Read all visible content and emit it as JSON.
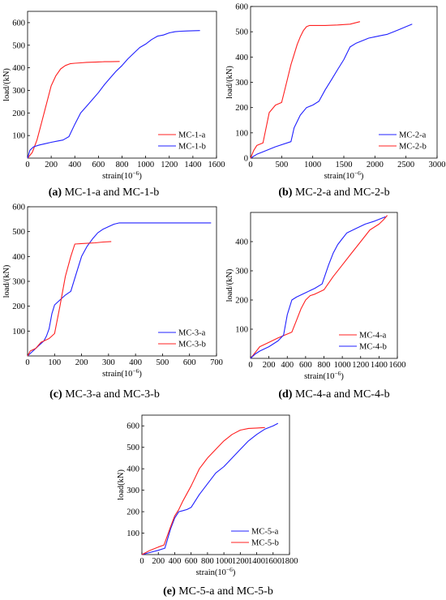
{
  "chart_data": [
    {
      "id": "a",
      "type": "line",
      "caption": {
        "letter": "(a)",
        "text": " MC-1-a and MC-1-b"
      },
      "xlabel": "strain(10",
      "xlabel_exp": "−6",
      "xlabel_close": ")",
      "ylabel": "load/(kN)",
      "xlim": [
        0,
        1600
      ],
      "ylim": [
        0,
        650
      ],
      "xticks": [
        0,
        200,
        400,
        600,
        800,
        1000,
        1200,
        1400,
        1600
      ],
      "yticks": [
        100,
        200,
        300,
        400,
        500,
        600
      ],
      "legend_position": "bottom-right",
      "series": [
        {
          "name": "MC-1-a",
          "color": "#ff2020",
          "x": [
            0,
            40,
            80,
            120,
            160,
            200,
            240,
            280,
            320,
            360,
            400,
            450,
            500,
            550,
            600,
            650,
            700,
            780
          ],
          "y": [
            0,
            25,
            80,
            160,
            240,
            320,
            365,
            395,
            410,
            418,
            420,
            422,
            424,
            425,
            426,
            427,
            427,
            428
          ]
        },
        {
          "name": "MC-1-b",
          "color": "#2020ff",
          "x": [
            0,
            20,
            50,
            100,
            150,
            200,
            250,
            300,
            350,
            400,
            450,
            500,
            550,
            600,
            650,
            700,
            750,
            800,
            850,
            900,
            950,
            1000,
            1050,
            1100,
            1150,
            1200,
            1250,
            1300,
            1350,
            1400,
            1460
          ],
          "y": [
            0,
            35,
            50,
            58,
            64,
            70,
            75,
            80,
            95,
            150,
            200,
            230,
            260,
            290,
            325,
            355,
            385,
            410,
            440,
            465,
            490,
            505,
            525,
            540,
            545,
            555,
            560,
            562,
            563,
            564,
            565
          ]
        }
      ]
    },
    {
      "id": "b",
      "type": "line",
      "caption": {
        "letter": "(b)",
        "text": " MC-2-a and MC-2-b"
      },
      "xlabel": "strain(10",
      "xlabel_exp": "−6",
      "xlabel_close": ")",
      "ylabel": "load/(kN)",
      "xlim": [
        0,
        3000
      ],
      "ylim": [
        0,
        600
      ],
      "xticks": [
        0,
        500,
        1000,
        1500,
        2000,
        2500,
        3000
      ],
      "yticks": [
        0,
        100,
        200,
        300,
        400,
        500,
        600
      ],
      "legend_position": "bottom-right",
      "series": [
        {
          "name": "MC-2-a",
          "color": "#2020ff",
          "x": [
            0,
            100,
            200,
            400,
            650,
            700,
            800,
            900,
            1000,
            1100,
            1200,
            1300,
            1400,
            1500,
            1600,
            1700,
            1800,
            1900,
            2000,
            2100,
            2200,
            2300,
            2400,
            2500,
            2600
          ],
          "y": [
            0,
            15,
            25,
            45,
            65,
            120,
            170,
            200,
            210,
            225,
            270,
            310,
            350,
            390,
            440,
            455,
            465,
            475,
            480,
            485,
            490,
            500,
            510,
            520,
            530
          ]
        },
        {
          "name": "MC-2-b",
          "color": "#ff2020",
          "x": [
            0,
            50,
            100,
            200,
            300,
            400,
            500,
            550,
            600,
            650,
            700,
            750,
            800,
            850,
            900,
            950,
            1000,
            1200,
            1400,
            1600,
            1760
          ],
          "y": [
            0,
            30,
            50,
            60,
            180,
            210,
            220,
            270,
            320,
            370,
            410,
            450,
            480,
            505,
            520,
            525,
            525,
            525,
            527,
            530,
            540
          ]
        }
      ]
    },
    {
      "id": "c",
      "type": "line",
      "caption": {
        "letter": "(c)",
        "text": " MC-3-a and MC-3-b"
      },
      "xlabel": "strain(10",
      "xlabel_exp": "−6",
      "xlabel_close": ")",
      "ylabel": "load/(kN)",
      "xlim": [
        0,
        700
      ],
      "ylim": [
        0,
        600
      ],
      "xticks": [
        0,
        100,
        200,
        300,
        400,
        500,
        600,
        700
      ],
      "yticks": [
        100,
        200,
        300,
        400,
        500,
        600
      ],
      "legend_position": "bottom-right",
      "series": [
        {
          "name": "MC-3-a",
          "color": "#2020ff",
          "x": [
            0,
            20,
            40,
            60,
            70,
            80,
            90,
            100,
            120,
            140,
            160,
            180,
            200,
            220,
            240,
            260,
            280,
            300,
            320,
            340,
            400,
            500,
            600,
            680
          ],
          "y": [
            0,
            20,
            40,
            60,
            80,
            110,
            170,
            205,
            225,
            245,
            260,
            330,
            400,
            440,
            470,
            495,
            510,
            520,
            530,
            535,
            535,
            535,
            535,
            535
          ]
        },
        {
          "name": "MC-3-b",
          "color": "#ff2020",
          "x": [
            0,
            10,
            30,
            50,
            80,
            100,
            120,
            140,
            160,
            175,
            200,
            250,
            280,
            310
          ],
          "y": [
            0,
            20,
            30,
            55,
            70,
            90,
            200,
            320,
            400,
            450,
            452,
            455,
            458,
            460
          ]
        }
      ]
    },
    {
      "id": "d",
      "type": "line",
      "caption": {
        "letter": "(d)",
        "text": " MC-4-a and MC-4-b"
      },
      "xlabel": "strain(10",
      "xlabel_exp": "−6",
      "xlabel_close": ")",
      "ylabel": "load/(kN)",
      "xlim": [
        0,
        1600
      ],
      "ylim": [
        0,
        500
      ],
      "xticks": [
        0,
        200,
        400,
        600,
        800,
        1000,
        1200,
        1400,
        1600
      ],
      "yticks": [
        100,
        200,
        300,
        400
      ],
      "legend_position": "bottom-right",
      "series": [
        {
          "name": "MC-4-a",
          "color": "#ff2020",
          "x": [
            0,
            50,
            100,
            200,
            300,
            450,
            500,
            550,
            600,
            650,
            700,
            800,
            900,
            1000,
            1100,
            1200,
            1300,
            1400,
            1450,
            1490
          ],
          "y": [
            0,
            20,
            40,
            55,
            70,
            90,
            130,
            170,
            200,
            215,
            220,
            235,
            280,
            320,
            360,
            400,
            440,
            460,
            475,
            490
          ]
        },
        {
          "name": "MC-4-b",
          "color": "#2020ff",
          "x": [
            0,
            50,
            100,
            200,
            300,
            360,
            400,
            450,
            500,
            600,
            700,
            780,
            850,
            900,
            950,
            1000,
            1050,
            1150,
            1250,
            1350,
            1470
          ],
          "y": [
            0,
            15,
            25,
            40,
            60,
            80,
            150,
            200,
            210,
            225,
            240,
            255,
            320,
            360,
            390,
            410,
            430,
            445,
            460,
            470,
            485
          ]
        }
      ]
    },
    {
      "id": "e",
      "type": "line",
      "caption": {
        "letter": "(e)",
        "text": " MC-5-a and MC-5-b"
      },
      "xlabel": "strain(10",
      "xlabel_exp": "−6",
      "xlabel_close": ")",
      "ylabel": "load(kN)",
      "xlim": [
        0,
        1800
      ],
      "ylim": [
        0,
        650
      ],
      "xticks": [
        0,
        200,
        400,
        600,
        800,
        1000,
        1200,
        1400,
        1600,
        1800
      ],
      "yticks": [
        100,
        200,
        300,
        400,
        500,
        600
      ],
      "legend_position": "bottom-right",
      "series": [
        {
          "name": "MC-5-a",
          "color": "#2020ff",
          "x": [
            0,
            100,
            200,
            280,
            350,
            400,
            450,
            500,
            550,
            600,
            700,
            800,
            900,
            1000,
            1100,
            1200,
            1300,
            1400,
            1500,
            1600,
            1660
          ],
          "y": [
            0,
            10,
            20,
            30,
            120,
            170,
            200,
            205,
            210,
            220,
            280,
            330,
            380,
            410,
            450,
            490,
            530,
            560,
            585,
            600,
            612
          ]
        },
        {
          "name": "MC-5-b",
          "color": "#ff2020",
          "x": [
            0,
            100,
            200,
            270,
            350,
            400,
            450,
            500,
            600,
            700,
            800,
            900,
            1000,
            1100,
            1200,
            1300,
            1400,
            1500
          ],
          "y": [
            0,
            20,
            35,
            45,
            130,
            180,
            210,
            250,
            320,
            400,
            450,
            490,
            530,
            560,
            580,
            588,
            590,
            592
          ]
        }
      ]
    }
  ]
}
